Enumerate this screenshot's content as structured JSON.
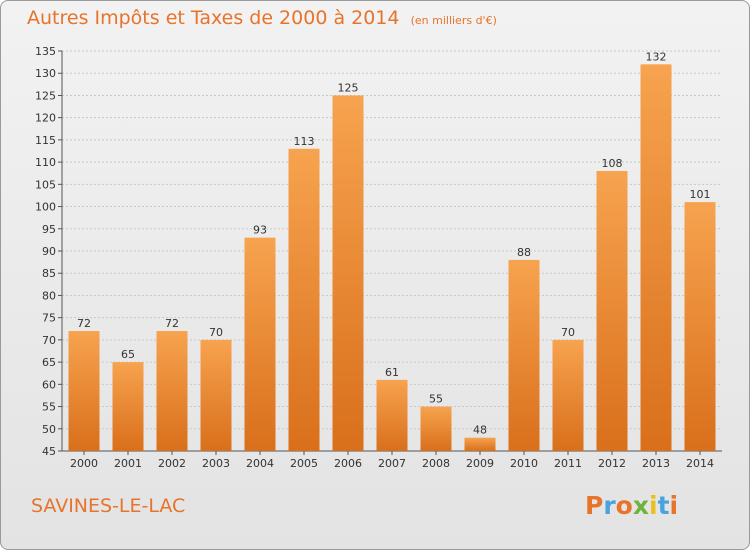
{
  "title": "Autres Impôts et Taxes de 2000 à 2014",
  "unit": "(en milliers d'€)",
  "city": "SAVINES-LE-LAC",
  "logo": {
    "text": "Proxiti",
    "colors": [
      "#e8732a",
      "#4aa3df",
      "#e8732a",
      "#6db33f",
      "#e8c020",
      "#4aa3df",
      "#e8732a"
    ]
  },
  "colors": {
    "bar_light": "#f7a34f",
    "bar_dark": "#d96f1b",
    "accent": "#e8732a"
  },
  "chart_data": {
    "type": "bar",
    "categories": [
      "2000",
      "2001",
      "2002",
      "2003",
      "2004",
      "2005",
      "2006",
      "2007",
      "2008",
      "2009",
      "2010",
      "2011",
      "2012",
      "2013",
      "2014"
    ],
    "values": [
      72,
      65,
      72,
      70,
      93,
      113,
      125,
      61,
      55,
      48,
      88,
      70,
      108,
      132,
      101
    ],
    "ylim": [
      45,
      135
    ],
    "yticks": [
      45,
      50,
      55,
      60,
      65,
      70,
      75,
      80,
      85,
      90,
      95,
      100,
      105,
      110,
      115,
      120,
      125,
      130,
      135
    ],
    "grid": true,
    "xlabel": "",
    "ylabel": ""
  }
}
